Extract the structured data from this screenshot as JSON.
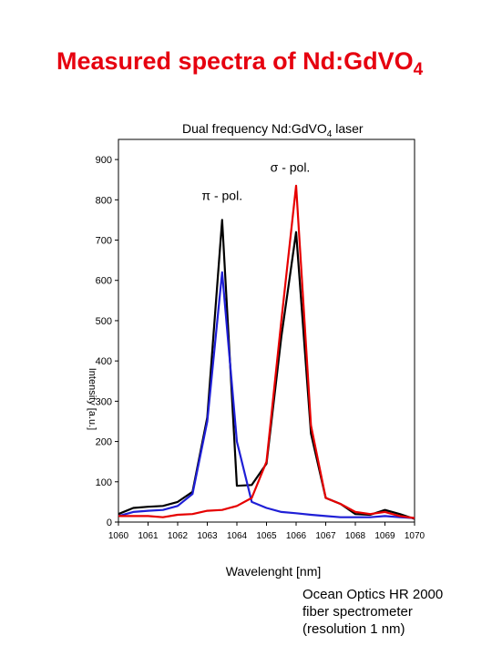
{
  "slide": {
    "title_main": "Measured spectra of Nd:GdVO",
    "title_sub": "4",
    "caption": [
      "Ocean Optics HR 2000",
      "fiber spectrometer",
      "(resolution  1 nm)"
    ]
  },
  "chart_data": {
    "type": "line",
    "title_main": "Dual frequency Nd:GdVO",
    "title_sub": "4",
    "title_after": " laser",
    "xlabel": "Wavelenght [nm]",
    "ylabel": "Intensity [a.u.]",
    "xlim": [
      1060,
      1070
    ],
    "ylim": [
      0,
      950
    ],
    "x_ticks": [
      "1060",
      "1061",
      "1062",
      "1063",
      "1064",
      "1065",
      "1066",
      "1067",
      "1068",
      "1069",
      "1070"
    ],
    "y_ticks": [
      "0",
      "100",
      "200",
      "300",
      "400",
      "500",
      "600",
      "700",
      "800",
      "900"
    ],
    "grid": false,
    "annotations": [
      {
        "text": "π - pol.",
        "x": 1063.5,
        "y": 800
      },
      {
        "text": "σ - pol.",
        "x": 1065.8,
        "y": 870
      }
    ],
    "series": [
      {
        "color": "#000000",
        "x": [
          1060,
          1060.5,
          1061,
          1061.5,
          1062,
          1062.5,
          1063,
          1063.5,
          1064,
          1064.5,
          1065,
          1065.5,
          1066,
          1066.5,
          1067,
          1067.5,
          1068,
          1068.5,
          1069,
          1069.5,
          1070
        ],
        "y": [
          20,
          35,
          38,
          40,
          50,
          75,
          260,
          750,
          90,
          92,
          145,
          460,
          720,
          220,
          60,
          45,
          20,
          18,
          30,
          20,
          8
        ]
      },
      {
        "color": "#1f1fd6",
        "x": [
          1060,
          1060.5,
          1061,
          1061.5,
          1062,
          1062.5,
          1063,
          1063.5,
          1064,
          1064.5,
          1065,
          1065.5,
          1066,
          1066.5,
          1067,
          1067.5,
          1068,
          1068.5,
          1069,
          1069.5,
          1070
        ],
        "y": [
          15,
          25,
          28,
          30,
          40,
          70,
          250,
          620,
          200,
          50,
          35,
          25,
          22,
          18,
          15,
          12,
          12,
          12,
          15,
          12,
          10
        ]
      },
      {
        "color": "#e60000",
        "x": [
          1060,
          1060.5,
          1061,
          1061.5,
          1062,
          1062.5,
          1063,
          1063.5,
          1064,
          1064.5,
          1065,
          1065.5,
          1066,
          1066.5,
          1067,
          1067.5,
          1068,
          1068.5,
          1069,
          1069.5,
          1070
        ],
        "y": [
          15,
          15,
          15,
          12,
          18,
          20,
          28,
          30,
          40,
          60,
          150,
          500,
          835,
          240,
          60,
          45,
          25,
          20,
          25,
          15,
          10
        ]
      }
    ]
  }
}
